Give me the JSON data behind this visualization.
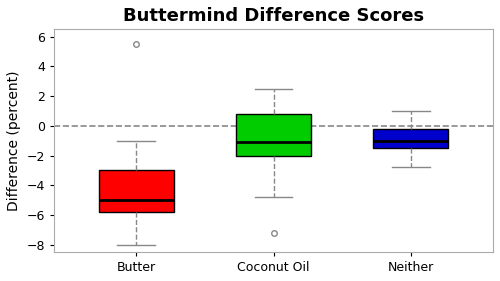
{
  "title": "Buttermind Difference Scores",
  "ylabel": "Difference (percent)",
  "categories": [
    "Butter",
    "Coconut Oil",
    "Neither"
  ],
  "colors": [
    "#ff0000",
    "#00cc00",
    "#0000cc"
  ],
  "box_edge_colors": [
    "black",
    "black",
    "black"
  ],
  "ylim": [
    -8.5,
    6.5
  ],
  "yticks": [
    -8,
    -6,
    -4,
    -2,
    0,
    2,
    4,
    6
  ],
  "box_stats": [
    {
      "med": -5.0,
      "q1": -5.8,
      "q3": -3.0,
      "whislo": -8.0,
      "whishi": -1.0,
      "fliers": [
        5.5
      ]
    },
    {
      "med": -1.1,
      "q1": -2.0,
      "q3": 0.8,
      "whislo": -4.8,
      "whishi": 2.5,
      "fliers": [
        -7.2
      ]
    },
    {
      "med": -1.0,
      "q1": -1.5,
      "q3": -0.2,
      "whislo": -2.8,
      "whishi": 1.0,
      "fliers": []
    }
  ],
  "hline_y": 0,
  "hline_color": "#888888",
  "hline_style": "--",
  "background_color": "#ffffff",
  "plot_bg_color": "#ffffff",
  "box_width": 0.55,
  "title_fontsize": 13,
  "label_fontsize": 10,
  "tick_fontsize": 9
}
